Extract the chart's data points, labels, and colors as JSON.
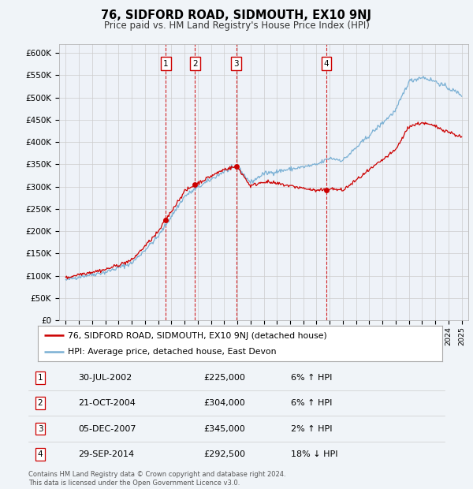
{
  "title": "76, SIDFORD ROAD, SIDMOUTH, EX10 9NJ",
  "subtitle": "Price paid vs. HM Land Registry's House Price Index (HPI)",
  "ylabel_ticks": [
    "£0",
    "£50K",
    "£100K",
    "£150K",
    "£200K",
    "£250K",
    "£300K",
    "£350K",
    "£400K",
    "£450K",
    "£500K",
    "£550K",
    "£600K"
  ],
  "ytick_values": [
    0,
    50000,
    100000,
    150000,
    200000,
    250000,
    300000,
    350000,
    400000,
    450000,
    500000,
    550000,
    600000
  ],
  "ylim": [
    0,
    620000
  ],
  "t1": 2002.57,
  "p1": 225000,
  "t2": 2004.8,
  "p2": 304000,
  "t3": 2007.92,
  "p3": 345000,
  "t4": 2014.75,
  "p4": 292500,
  "legend_property_label": "76, SIDFORD ROAD, SIDMOUTH, EX10 9NJ (detached house)",
  "legend_hpi_label": "HPI: Average price, detached house, East Devon",
  "footer": "Contains HM Land Registry data © Crown copyright and database right 2024.\nThis data is licensed under the Open Government Licence v3.0.",
  "property_color": "#cc0000",
  "hpi_color": "#7ab0d4",
  "background_color": "#f0f4f8",
  "plot_bg_color": "#eef2f8",
  "grid_color": "#cccccc",
  "vline_color": "#cc0000",
  "table_rows": [
    [
      "1",
      "30-JUL-2002",
      "£225,000",
      "6% ↑ HPI"
    ],
    [
      "2",
      "21-OCT-2004",
      "£304,000",
      "6% ↑ HPI"
    ],
    [
      "3",
      "05-DEC-2007",
      "£345,000",
      "2% ↑ HPI"
    ],
    [
      "4",
      "29-SEP-2014",
      "£292,500",
      "18% ↓ HPI"
    ]
  ]
}
